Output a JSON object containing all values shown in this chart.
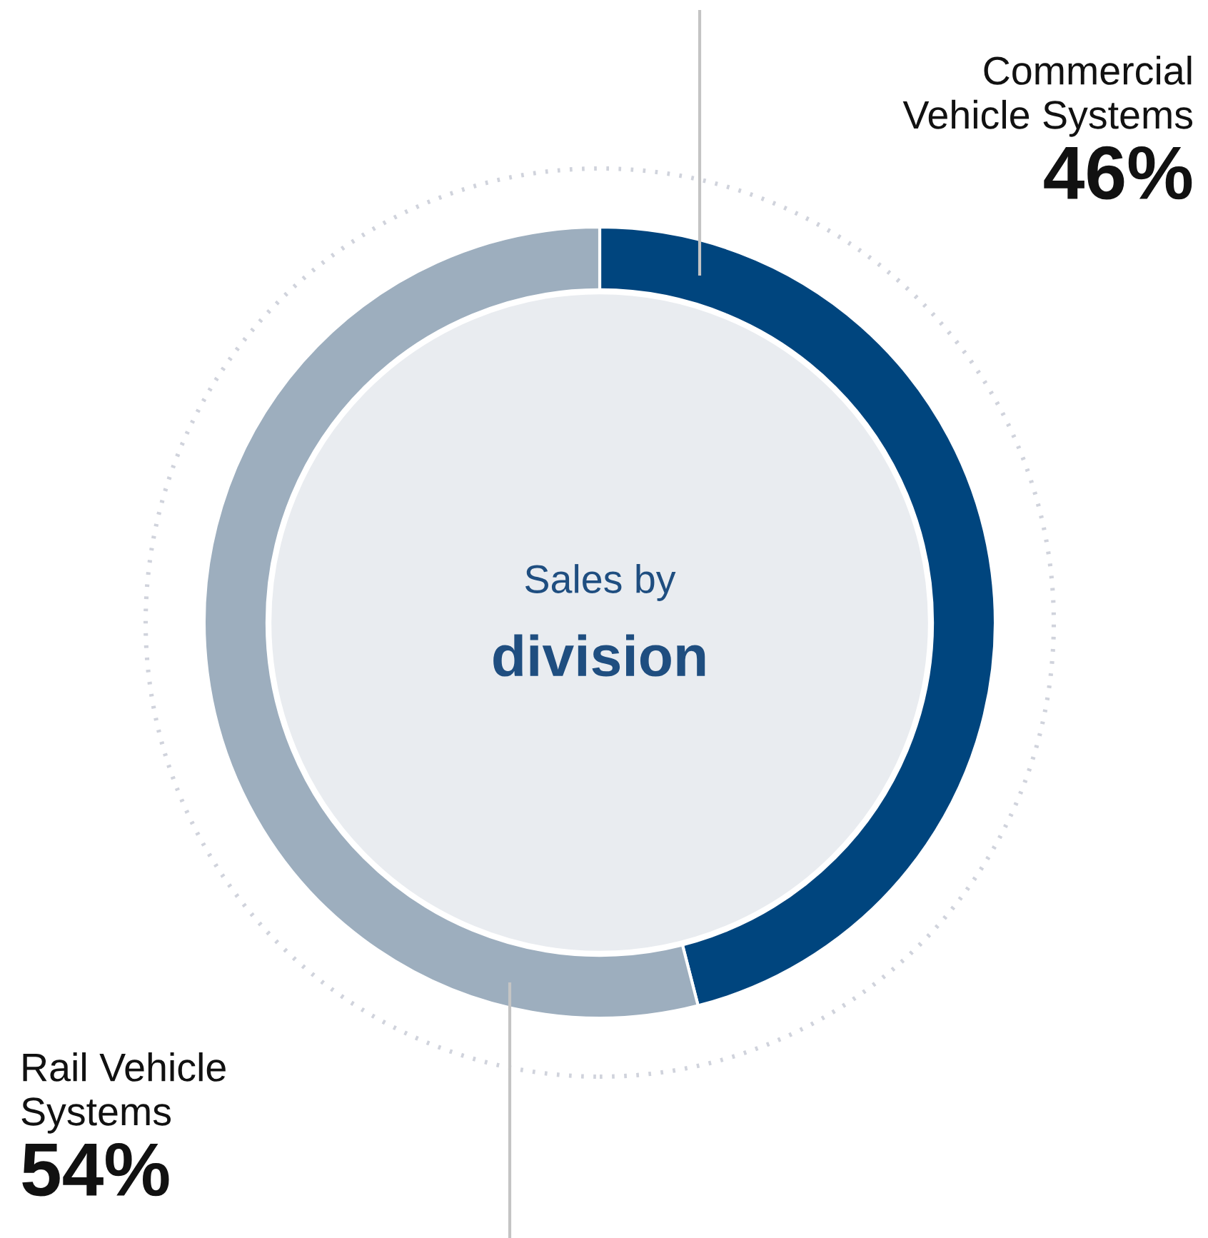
{
  "chart_data": {
    "type": "donut",
    "title": "Sales by",
    "subtitle": "division",
    "categories": [
      "Commercial\nVehicle Systems",
      "Rail Vehicle\nSystems"
    ],
    "values": [
      46,
      54
    ],
    "colors": [
      "#00457e",
      "#9daebe"
    ],
    "value_labels": [
      "46%",
      "54%"
    ],
    "legend": false
  }
}
